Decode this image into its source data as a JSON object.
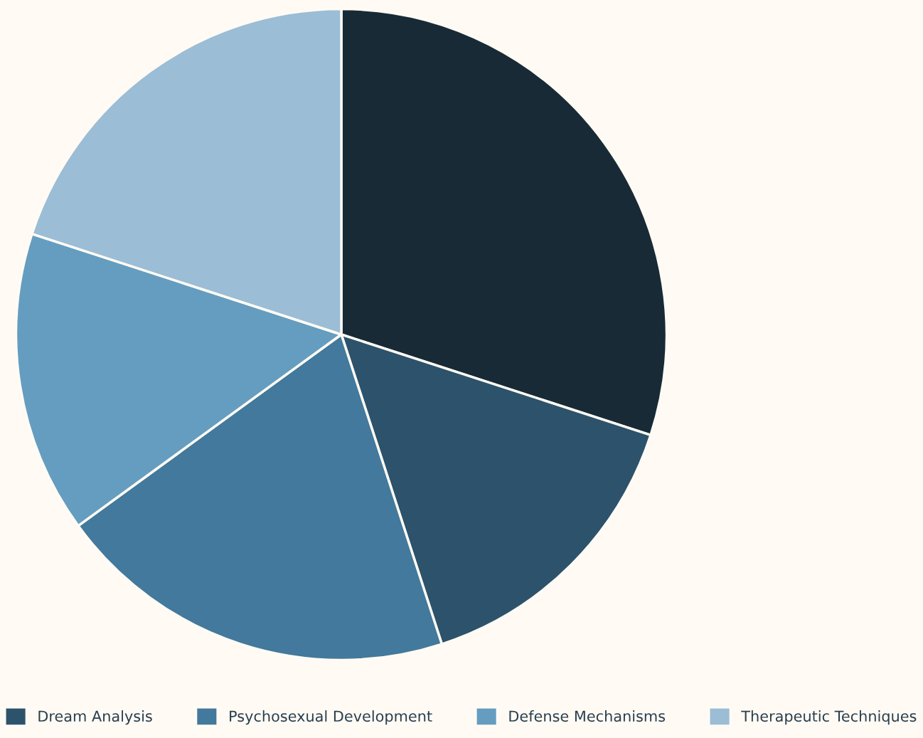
{
  "chart_data": {
    "type": "pie",
    "categories": [
      null,
      "Dream Analysis",
      "Psychosexual Development",
      "Defense Mechanisms",
      "Therapeutic Techniques"
    ],
    "values": [
      30,
      15,
      20,
      15,
      20
    ],
    "colors": [
      "#182a36",
      "#2d526b",
      "#42799c",
      "#659dc0",
      "#9bbdd6"
    ],
    "legend": "bottom"
  }
}
